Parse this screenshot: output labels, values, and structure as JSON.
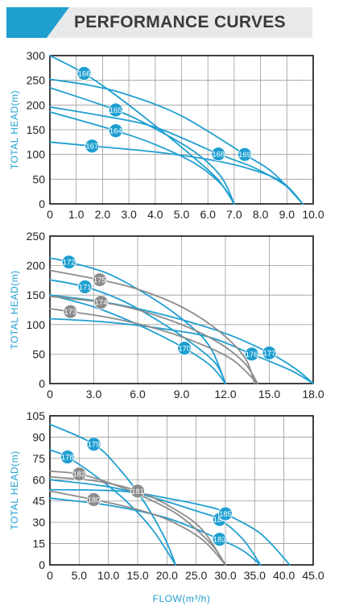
{
  "header": {
    "title": "PERFORMANCE CURVES"
  },
  "colors": {
    "blue": "#1f9fd0",
    "gray": "#8c8c8c",
    "grid": "#9a9a9a",
    "frame": "#111111"
  },
  "chart_data": [
    {
      "type": "line",
      "title": "",
      "xlabel": "",
      "ylabel": "TOTAL HEAD(m)",
      "xlim": [
        0,
        10
      ],
      "ylim": [
        0,
        300
      ],
      "x_ticks": [
        "0",
        "1.0",
        "2.0",
        "3.0",
        "4.0",
        "5.0",
        "6.0",
        "7.0",
        "8.0",
        "9.0",
        "10.0"
      ],
      "y_ticks": [
        "0",
        "50",
        "100",
        "150",
        "200",
        "250",
        "300"
      ],
      "grid": true,
      "series": [
        {
          "name": "166",
          "color": "blue",
          "points": [
            [
              0,
              300
            ],
            [
              1.3,
              264
            ],
            [
              2.5,
              220
            ],
            [
              4.0,
              158
            ],
            [
              5.5,
              92
            ],
            [
              6.4,
              48
            ],
            [
              7.0,
              0
            ]
          ],
          "label_at": [
            1.3,
            264
          ]
        },
        {
          "name": "165",
          "color": "blue",
          "points": [
            [
              0,
              235
            ],
            [
              2.5,
              190
            ],
            [
              4.0,
              152
            ],
            [
              5.5,
              105
            ],
            [
              6.5,
              55
            ],
            [
              7.0,
              0
            ]
          ],
          "label_at": [
            2.5,
            190
          ]
        },
        {
          "name": "164",
          "color": "blue",
          "points": [
            [
              0,
              186
            ],
            [
              2.5,
              148
            ],
            [
              4.0,
              120
            ],
            [
              5.5,
              82
            ],
            [
              6.5,
              40
            ],
            [
              7.0,
              0
            ]
          ],
          "label_at": [
            2.5,
            148
          ]
        },
        {
          "name": "167",
          "color": "blue",
          "points": [
            [
              0,
              125
            ],
            [
              1.6,
              117
            ],
            [
              4.0,
              105
            ],
            [
              6.0,
              90
            ],
            [
              7.5,
              72
            ],
            [
              8.8,
              45
            ],
            [
              9.6,
              0
            ]
          ],
          "label_at": [
            1.6,
            117
          ]
        },
        {
          "name": "168",
          "color": "blue",
          "points": [
            [
              0,
              196
            ],
            [
              2.0,
              178
            ],
            [
              4.0,
              155
            ],
            [
              6.4,
              101
            ],
            [
              7.8,
              72
            ],
            [
              9.0,
              35
            ],
            [
              9.6,
              0
            ]
          ],
          "label_at": [
            6.4,
            101
          ]
        },
        {
          "name": "169",
          "color": "blue",
          "points": [
            [
              0,
              252
            ],
            [
              1.5,
              240
            ],
            [
              3.0,
              220
            ],
            [
              5.0,
              178
            ],
            [
              7.4,
              100
            ],
            [
              8.5,
              62
            ],
            [
              9.6,
              0
            ]
          ],
          "label_at": [
            7.4,
            100
          ]
        }
      ]
    },
    {
      "type": "line",
      "title": "",
      "xlabel": "",
      "ylabel": "TOTAL HEAD(m)",
      "xlim": [
        0,
        18
      ],
      "ylim": [
        0,
        250
      ],
      "x_ticks": [
        "0",
        "3.0",
        "6.0",
        "9.0",
        "12.0",
        "15.0",
        "18.0"
      ],
      "y_ticks": [
        "0",
        "50",
        "100",
        "150",
        "200",
        "250"
      ],
      "grid": true,
      "series": [
        {
          "name": "172",
          "color": "blue",
          "points": [
            [
              0,
              213
            ],
            [
              1.3,
              206
            ],
            [
              4.0,
              186
            ],
            [
              7.0,
              145
            ],
            [
              9.5,
              100
            ],
            [
              11.0,
              60
            ],
            [
              12.0,
              0
            ]
          ],
          "label_at": [
            1.3,
            206
          ]
        },
        {
          "name": "171",
          "color": "blue",
          "points": [
            [
              0,
              176
            ],
            [
              2.4,
              164
            ],
            [
              5.0,
              140
            ],
            [
              7.5,
              105
            ],
            [
              9.5,
              72
            ],
            [
              11.3,
              35
            ],
            [
              12.0,
              0
            ]
          ],
          "label_at": [
            2.4,
            164
          ]
        },
        {
          "name": "170",
          "color": "blue",
          "points": [
            [
              0,
              150
            ],
            [
              3.0,
              130
            ],
            [
              6.0,
              100
            ],
            [
              9.2,
              60
            ],
            [
              11.0,
              30
            ],
            [
              12.0,
              0
            ]
          ],
          "label_at": [
            9.2,
            60
          ]
        },
        {
          "name": "176",
          "color": "blue",
          "points": [
            [
              0,
              110
            ],
            [
              4.0,
              104
            ],
            [
              8.0,
              92
            ],
            [
              11.0,
              78
            ],
            [
              13.8,
              50
            ],
            [
              16.5,
              22
            ],
            [
              18.0,
              0
            ]
          ],
          "label_at": [
            13.8,
            50
          ]
        },
        {
          "name": "177",
          "color": "blue",
          "points": [
            [
              0,
              150
            ],
            [
              4.0,
              137
            ],
            [
              8.0,
              115
            ],
            [
              12.0,
              85
            ],
            [
              15.0,
              52
            ],
            [
              16.8,
              25
            ],
            [
              18.0,
              0
            ]
          ],
          "label_at": [
            15.0,
            52
          ]
        },
        {
          "name": "175",
          "color": "gray",
          "points": [
            [
              0,
              192
            ],
            [
              3.4,
              176
            ],
            [
              6.0,
              160
            ],
            [
              9.0,
              130
            ],
            [
              11.5,
              90
            ],
            [
              13.3,
              45
            ],
            [
              14.0,
              0
            ]
          ],
          "label_at": [
            3.4,
            176
          ]
        },
        {
          "name": "174",
          "color": "gray",
          "points": [
            [
              0,
              148
            ],
            [
              3.5,
              138
            ],
            [
              6.0,
              125
            ],
            [
              9.0,
              100
            ],
            [
              11.5,
              70
            ],
            [
              13.3,
              35
            ],
            [
              14.2,
              0
            ]
          ],
          "label_at": [
            3.5,
            138
          ]
        },
        {
          "name": "173",
          "color": "gray",
          "points": [
            [
              0,
              127
            ],
            [
              1.4,
              122
            ],
            [
              4.0,
              112
            ],
            [
              7.0,
              95
            ],
            [
              10.0,
              70
            ],
            [
              12.5,
              40
            ],
            [
              14.2,
              0
            ]
          ],
          "label_at": [
            1.4,
            122
          ]
        }
      ]
    },
    {
      "type": "line",
      "title": "",
      "xlabel": "FLOW(m³/h)",
      "ylabel": "TOTAL HEAD(m)",
      "xlim": [
        0,
        45
      ],
      "ylim": [
        0,
        105
      ],
      "x_ticks": [
        "0",
        "5.0",
        "10.0",
        "15.0",
        "20.0",
        "25.0",
        "30.0",
        "35.0",
        "40.0",
        "45.0"
      ],
      "y_ticks": [
        "0",
        "15",
        "30",
        "45",
        "60",
        "75",
        "90",
        "105"
      ],
      "grid": true,
      "series": [
        {
          "name": "179",
          "color": "blue",
          "points": [
            [
              0,
              99
            ],
            [
              7.5,
              85
            ],
            [
              12.0,
              67
            ],
            [
              16.0,
              45
            ],
            [
              19.5,
              20
            ],
            [
              21.5,
              0
            ]
          ],
          "label_at": [
            7.5,
            85
          ]
        },
        {
          "name": "178",
          "color": "blue",
          "points": [
            [
              0,
              81
            ],
            [
              3.0,
              76
            ],
            [
              8.0,
              62
            ],
            [
              13.0,
              45
            ],
            [
              17.5,
              25
            ],
            [
              21.5,
              0
            ]
          ],
          "label_at": [
            3.0,
            76
          ]
        },
        {
          "name": "184",
          "color": "blue",
          "points": [
            [
              0,
              60
            ],
            [
              10.0,
              55
            ],
            [
              18.0,
              47
            ],
            [
              25.0,
              38
            ],
            [
              29.0,
              32
            ],
            [
              33.0,
              18
            ],
            [
              36.0,
              0
            ]
          ],
          "label_at": [
            29.0,
            32
          ]
        },
        {
          "name": "183",
          "color": "blue",
          "points": [
            [
              0,
              47
            ],
            [
              10.0,
              42
            ],
            [
              20.0,
              33
            ],
            [
              29.0,
              18
            ],
            [
              33.0,
              10
            ],
            [
              36.0,
              0
            ]
          ],
          "label_at": [
            29.0,
            18
          ]
        },
        {
          "name": "185",
          "color": "blue",
          "points": [
            [
              0,
              53
            ],
            [
              12.0,
              52
            ],
            [
              20.0,
              47
            ],
            [
              28.0,
              40
            ],
            [
              30.0,
              36
            ],
            [
              36.0,
              22
            ],
            [
              41.0,
              0
            ]
          ],
          "label_at": [
            30.0,
            36
          ]
        },
        {
          "name": "182",
          "color": "gray",
          "points": [
            [
              0,
              66
            ],
            [
              5.0,
              64
            ],
            [
              10.0,
              58
            ],
            [
              16.0,
              48
            ],
            [
              22.0,
              35
            ],
            [
              27.5,
              15
            ],
            [
              30.0,
              0
            ]
          ],
          "label_at": [
            5.0,
            64
          ]
        },
        {
          "name": "181",
          "color": "gray",
          "points": [
            [
              0,
              62
            ],
            [
              8.0,
              59
            ],
            [
              15.0,
              52
            ],
            [
              21.0,
              40
            ],
            [
              26.0,
              25
            ],
            [
              30.0,
              0
            ]
          ],
          "label_at": [
            15.0,
            52
          ]
        },
        {
          "name": "180",
          "color": "gray",
          "points": [
            [
              0,
              52
            ],
            [
              7.5,
              46
            ],
            [
              14.0,
              40
            ],
            [
              20.0,
              32
            ],
            [
              26.0,
              18
            ],
            [
              30.0,
              0
            ]
          ],
          "label_at": [
            7.5,
            46
          ]
        }
      ]
    }
  ]
}
